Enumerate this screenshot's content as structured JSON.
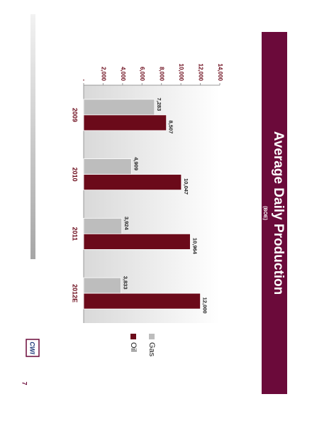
{
  "chart_data": {
    "type": "bar",
    "title": "Average Daily Production",
    "subtitle": "(BOE)",
    "categories": [
      "2009",
      "2010",
      "2011",
      "2012E"
    ],
    "series": [
      {
        "name": "Gas",
        "color": "#bdbdbd",
        "values": [
          7283,
          4909,
          3924,
          3833
        ],
        "value_labels": [
          "7,283",
          "4,909",
          "3,924",
          "3,833"
        ]
      },
      {
        "name": "Oil",
        "color": "#6b0a1a",
        "values": [
          8507,
          10047,
          10964,
          12000
        ],
        "value_labels": [
          "8,507",
          "10,047",
          "10,964",
          "12,000"
        ]
      }
    ],
    "ylim": [
      0,
      14000
    ],
    "yticks": [
      {
        "value": 0,
        "label": "-"
      },
      {
        "value": 2000,
        "label": "2,000"
      },
      {
        "value": 4000,
        "label": "4,000"
      },
      {
        "value": 6000,
        "label": "6,000"
      },
      {
        "value": 8000,
        "label": "8,000"
      },
      {
        "value": 10000,
        "label": "10,000"
      },
      {
        "value": 12000,
        "label": "12,000"
      },
      {
        "value": 14000,
        "label": "14,000"
      }
    ],
    "legend": "right",
    "page_number": "7",
    "logo": "CWI"
  }
}
